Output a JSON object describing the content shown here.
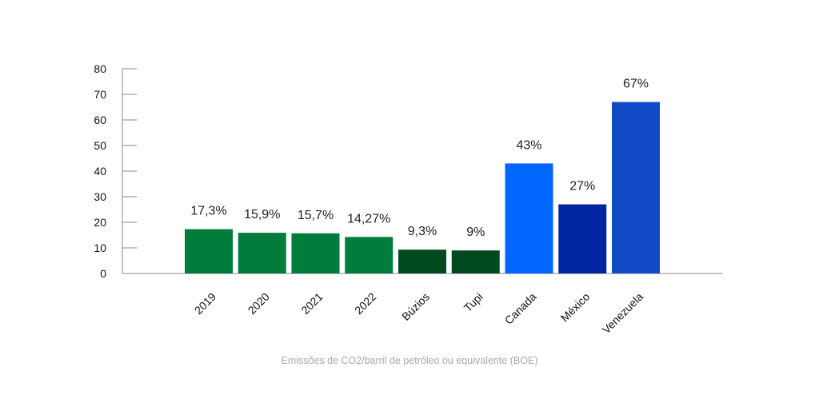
{
  "chart_data": {
    "type": "bar",
    "categories": [
      "2019",
      "2020",
      "2021",
      "2022",
      "Búzios",
      "Tupi",
      "Canada",
      "México",
      "Venezuela"
    ],
    "values": [
      17.3,
      15.9,
      15.7,
      14.27,
      9.3,
      9,
      43,
      27,
      67
    ],
    "data_labels": [
      "17,3%",
      "15,9%",
      "15,7%",
      "14,27%",
      "9,3%",
      "9%",
      "43%",
      "27%",
      "67%"
    ],
    "colors": [
      "#007d3a",
      "#007d3a",
      "#007d3a",
      "#007d3a",
      "#004a1f",
      "#004a1f",
      "#0066ff",
      "#0025a0",
      "#1249c4"
    ],
    "yticks": [
      "0",
      "10",
      "20",
      "30",
      "40",
      "50",
      "60",
      "70",
      "80"
    ],
    "ylim": [
      0,
      80
    ],
    "grid": false,
    "legend": "none",
    "caption": "Emissões de CO2/barril de petróleo ou equivalente (BOE)"
  }
}
